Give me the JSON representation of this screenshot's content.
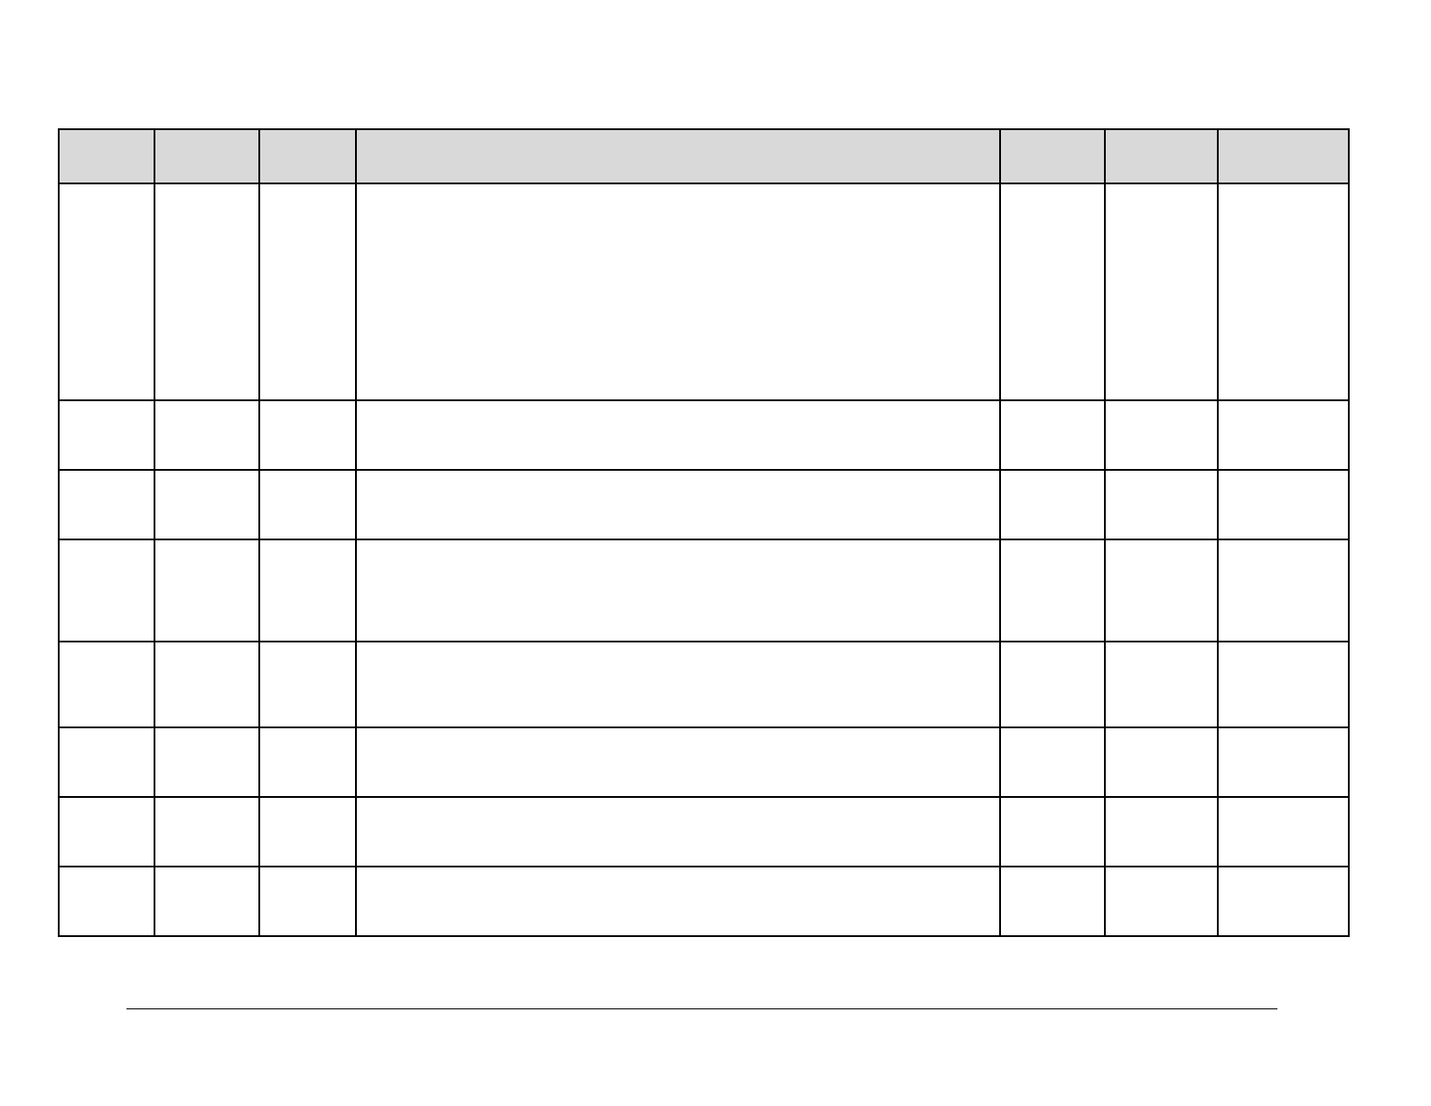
{
  "table": {
    "header_color": "#d9d9d9",
    "border_color": "#000000"
  }
}
